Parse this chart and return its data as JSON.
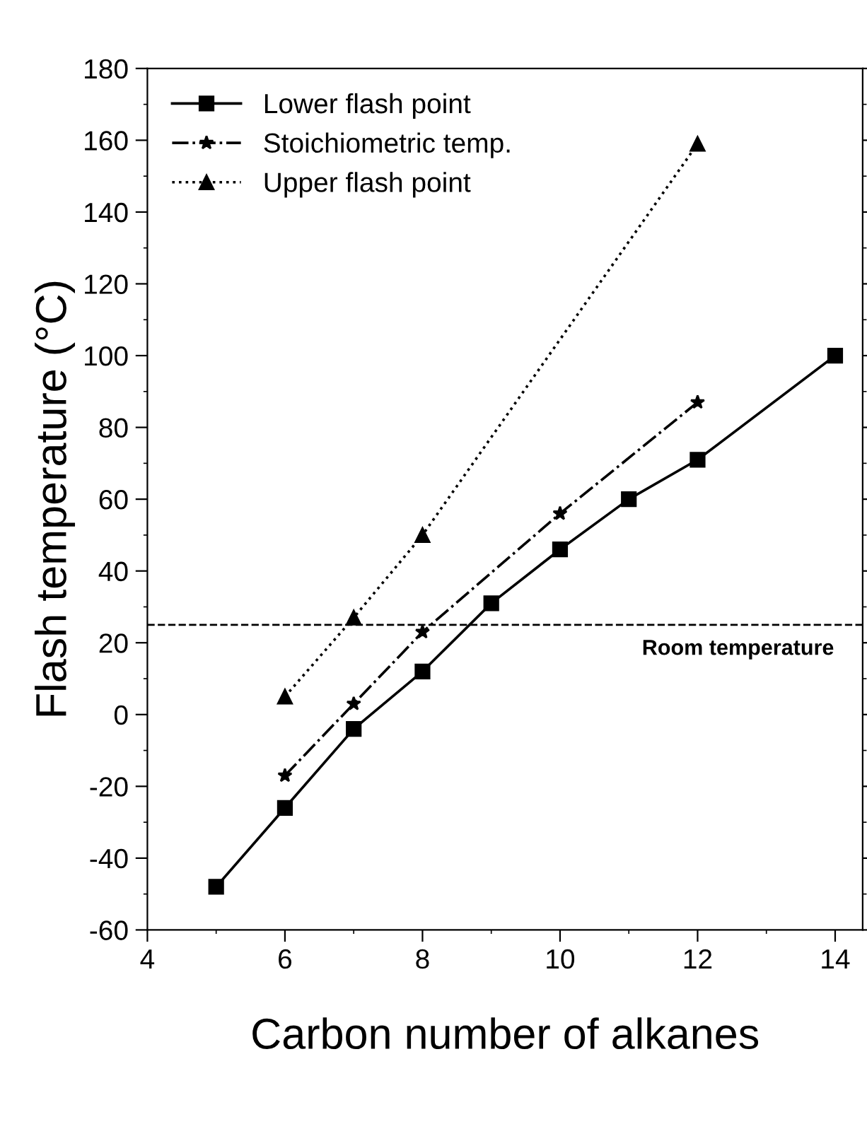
{
  "chart_data": {
    "type": "line",
    "xlabel": "Carbon number of alkanes",
    "ylabel": "Flash temperature (°C)",
    "xlim": [
      4,
      14.4
    ],
    "xticks": [
      4,
      6,
      8,
      10,
      12,
      14
    ],
    "ylim": [
      -60,
      180
    ],
    "yticks": [
      -60,
      -40,
      -20,
      0,
      20,
      40,
      60,
      80,
      100,
      120,
      140,
      160,
      180
    ],
    "legend": "top left",
    "grid": false,
    "series": [
      {
        "name": "Lower flash point",
        "color": "#000000",
        "marker": "square",
        "line_style": "solid",
        "x": [
          5,
          6,
          7,
          8,
          9,
          10,
          11,
          12,
          14
        ],
        "values": [
          -48,
          -26,
          -4,
          12,
          31,
          46,
          60,
          71,
          100
        ]
      },
      {
        "name": "Stoichiometric temp.",
        "color": "#000000",
        "marker": "star",
        "line_style": "dashdot",
        "x": [
          6,
          7,
          8,
          10,
          12
        ],
        "values": [
          -17,
          3,
          23,
          56,
          87
        ]
      },
      {
        "name": "Upper flash point",
        "color": "#000000",
        "marker": "triangle",
        "line_style": "dotted",
        "x": [
          6,
          7,
          8,
          12
        ],
        "values": [
          5,
          27,
          50,
          159
        ]
      }
    ],
    "ref_lines": [
      {
        "axis": "y",
        "value": 25,
        "label": "Room temperature",
        "color": "#000000",
        "line_style": "dashed"
      }
    ]
  }
}
